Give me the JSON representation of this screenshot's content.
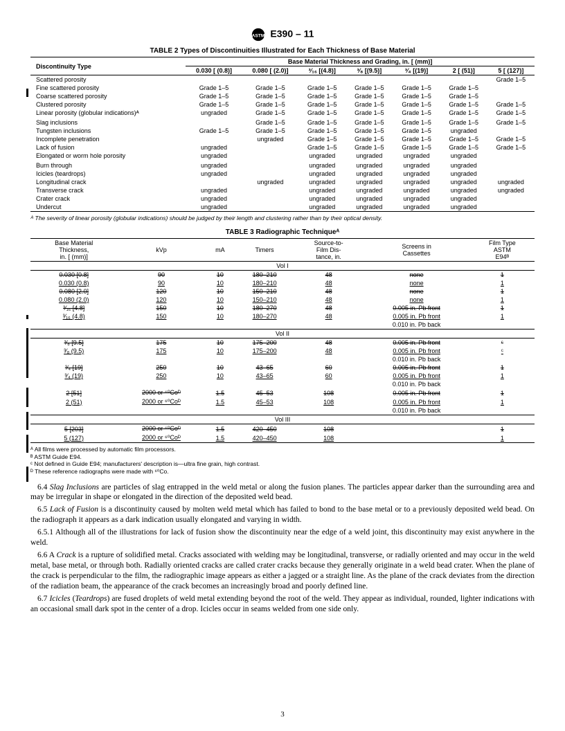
{
  "header": {
    "designation": "E390 – 11"
  },
  "table2": {
    "title": "TABLE 2  Types of Discontinuities Illustrated for Each Thickness of Base Material",
    "col_label": "Discontinuity Type",
    "span_header": "Base Material Thickness and Grading, in. [ (mm)]",
    "cols": [
      "0.030 [ (0.8)]",
      "0.080 [ (2.0)]",
      "³⁄₁₆ [(4.8)]",
      "³⁄₈ [(9.5)]",
      "³⁄₄ [(19)]",
      "2 [ (51)]",
      "5 [ (127)]"
    ],
    "rows": [
      {
        "name": "Scattered porosity",
        "c": [
          "",
          "",
          "",
          "",
          "",
          "",
          "Grade 1–5"
        ]
      },
      {
        "name": "Fine scattered porosity",
        "c": [
          "Grade 1–5",
          "Grade 1–5",
          "Grade 1–5",
          "Grade 1–5",
          "Grade 1–5",
          "Grade 1–5",
          ""
        ]
      },
      {
        "name": "Coarse scattered porosity",
        "c": [
          "Grade 1–5",
          "Grade 1–5",
          "Grade 1–5",
          "Grade 1–5",
          "Grade 1–5",
          "Grade 1–5",
          ""
        ]
      },
      {
        "name": "Clustered porosity",
        "c": [
          "Grade 1–5",
          "Grade 1–5",
          "Grade 1–5",
          "Grade 1–5",
          "Grade 1–5",
          "Grade 1–5",
          "Grade 1–5"
        ]
      },
      {
        "name": "Linear porosity (globular indications)ᴬ",
        "c": [
          "ungraded",
          "Grade 1–5",
          "Grade 1–5",
          "Grade 1–5",
          "Grade 1–5",
          "Grade 1–5",
          "Grade 1–5"
        ]
      },
      {
        "name": "",
        "c": [
          "",
          "",
          "",
          "",
          "",
          "",
          ""
        ]
      },
      {
        "name": "Slag inclusions",
        "c": [
          "",
          "Grade 1–5",
          "Grade 1–5",
          "Grade 1–5",
          "Grade 1–5",
          "Grade 1–5",
          "Grade 1–5"
        ]
      },
      {
        "name": "Tungsten inclusions",
        "c": [
          "Grade 1–5",
          "Grade 1–5",
          "Grade 1–5",
          "Grade 1–5",
          "Grade 1–5",
          "ungraded",
          ""
        ]
      },
      {
        "name": "Incomplete penetration",
        "c": [
          "",
          "ungraded",
          "Grade 1–5",
          "Grade 1–5",
          "Grade 1–5",
          "Grade 1–5",
          "Grade 1–5"
        ]
      },
      {
        "name": "Lack of fusion",
        "c": [
          "ungraded",
          "",
          "Grade 1–5",
          "Grade 1–5",
          "Grade 1–5",
          "Grade 1–5",
          "Grade 1–5"
        ]
      },
      {
        "name": "Elongated or worm hole porosity",
        "c": [
          "ungraded",
          "",
          "ungraded",
          "ungraded",
          "ungraded",
          "ungraded",
          ""
        ]
      },
      {
        "name": "",
        "c": [
          "",
          "",
          "",
          "",
          "",
          "",
          ""
        ]
      },
      {
        "name": "Burn through",
        "c": [
          "ungraded",
          "",
          "ungraded",
          "ungraded",
          "ungraded",
          "ungraded",
          ""
        ]
      },
      {
        "name": "Icicles (teardrops)",
        "c": [
          "ungraded",
          "",
          "ungraded",
          "ungraded",
          "ungraded",
          "ungraded",
          ""
        ]
      },
      {
        "name": "Longitudinal crack",
        "c": [
          "",
          "ungraded",
          "ungraded",
          "ungraded",
          "ungraded",
          "ungraded",
          "ungraded"
        ]
      },
      {
        "name": "Transverse crack",
        "c": [
          "ungraded",
          "",
          "ungraded",
          "ungraded",
          "ungraded",
          "ungraded",
          "ungraded"
        ]
      },
      {
        "name": "Crater crack",
        "c": [
          "ungraded",
          "",
          "ungraded",
          "ungraded",
          "ungraded",
          "ungraded",
          ""
        ]
      },
      {
        "name": "Undercut",
        "c": [
          "ungraded",
          "",
          "ungraded",
          "ungraded",
          "ungraded",
          "ungraded",
          ""
        ]
      }
    ],
    "footnote": "ᴬ The severity of linear porosity (globular indications) should be judged by their length and clustering rather than by their optical density."
  },
  "table3": {
    "title": "TABLE 3  Radiographic Techniqueᴬ",
    "headers": [
      "Base Material\nThickness,\nin. [ (mm)]",
      "kVp",
      "mA",
      "Timers",
      "Source-to-\nFilm Dis-\ntance, in.",
      "Screens in\nCassettes",
      "Film Type\nASTM\nE94ᴮ"
    ],
    "vols": [
      {
        "title": "Vol I",
        "rows": [
          {
            "cells": [
              "0.030 [0.8]",
              "90",
              "10",
              "180–210",
              "48",
              "none",
              "1"
            ],
            "style": "strike"
          },
          {
            "cells": [
              "0.030 (0.8)",
              "90",
              "10",
              "180–210",
              "48",
              "none",
              "1"
            ],
            "style": "uline"
          },
          {
            "cells": [
              "0.080 [2.0]",
              "120",
              "10",
              "150–210",
              "48",
              "none",
              "1"
            ],
            "style": "strike"
          },
          {
            "cells": [
              "0.080 (2.0)",
              "120",
              "10",
              "150–210",
              "48",
              "none",
              "1"
            ],
            "style": "uline"
          },
          {
            "cells": [
              "³⁄₁₆ [4.8]",
              "150",
              "10",
              "180–270",
              "48",
              "0.005 in. Pb front",
              "1"
            ],
            "style": "strike"
          },
          {
            "cells": [
              "³⁄₁₆ (4.8)",
              "150",
              "10",
              "180–270",
              "48",
              "0.005 in. Pb front",
              "1"
            ],
            "style": "uline"
          },
          {
            "cells": [
              "",
              "",
              "",
              "",
              "",
              "0.010 in. Pb back",
              ""
            ],
            "style": ""
          }
        ]
      },
      {
        "title": "Vol II",
        "rows": [
          {
            "cells": [
              "³⁄₈ [9.5]",
              "175",
              "10",
              "175–200",
              "48",
              "0.005 in. Pb front",
              "ᶜ"
            ],
            "style": "strike"
          },
          {
            "cells": [
              "³⁄₈ (9.5)",
              "175",
              "10",
              "175–200",
              "48",
              "0.005 in. Pb front",
              "ᶜ"
            ],
            "style": "uline"
          },
          {
            "cells": [
              "",
              "",
              "",
              "",
              "",
              "0.010 in. Pb back",
              ""
            ],
            "style": ""
          },
          {
            "cells": [
              "³⁄₄ [19]",
              "250",
              "10",
              "43–65",
              "60",
              "0.005 in. Pb front",
              "1"
            ],
            "style": "strike"
          },
          {
            "cells": [
              "³⁄₄ (19)",
              "250",
              "10",
              "43–65",
              "60",
              "0.005 in. Pb front",
              "1"
            ],
            "style": "uline"
          },
          {
            "cells": [
              "",
              "",
              "",
              "",
              "",
              "0.010 in. Pb back",
              ""
            ],
            "style": ""
          },
          {
            "cells": [
              "2 [51]",
              "2000 or ⁶⁰Coᴰ",
              "1.5",
              "45–53",
              "108",
              "0.005 in. Pb front",
              "1"
            ],
            "style": "strike"
          },
          {
            "cells": [
              "2 (51)",
              "2000 or ⁶⁰Coᴰ",
              "1.5",
              "45–53",
              "108",
              "0.005 in. Pb front",
              "1"
            ],
            "style": "uline"
          },
          {
            "cells": [
              "",
              "",
              "",
              "",
              "",
              "0.010 in. Pb back",
              ""
            ],
            "style": ""
          }
        ]
      },
      {
        "title": "Vol III",
        "rows": [
          {
            "cells": [
              "5 [203]",
              "2000 or ⁶⁰Coᴰ",
              "1.5",
              "420–450",
              "108",
              "",
              "1"
            ],
            "style": "strike"
          },
          {
            "cells": [
              "5 (127)",
              "2000 or ⁶⁰Coᴰ",
              "1.5",
              "420–450",
              "108",
              "",
              "1"
            ],
            "style": "uline"
          }
        ]
      }
    ],
    "footnotes": [
      "ᴬ All films were processed by automatic film processors.",
      "ᴮ ASTM Guide E94.",
      "ᶜ Not defined in Guide E94; manufacturers' description is—ultra fine grain, high contrast.",
      "ᴰ These reference radiographs were made with ⁶⁰Co."
    ]
  },
  "body": {
    "p64": "6.4 <em>Slag Inclusions</em>   are particles of slag entrapped in the weld metal or along the fusion planes. The particles appear darker than the surrounding area and may be irregular in shape or elongated in the direction of the deposited weld bead.",
    "p65": "6.5 <em>Lack of Fusion</em>   is a discontinuity caused by molten weld metal which has failed to bond to the base metal or to a previously deposited weld bead. On the radiograph it appears as a dark indication usually elongated and varying in width.",
    "p651": "6.5.1 Although all of the illustrations for lack of fusion show the discontinuity near the edge of a weld joint, this discontinuity may exist anywhere in the weld.",
    "p66": "6.6 A <em>Crack</em> is a rupture of solidified metal. Cracks associated with welding may be longitudinal, transverse, or radially oriented and may occur in the weld metal, base metal, or through both. Radially oriented cracks are called crater cracks because they generally originate in a weld bead crater. When the plane of the crack is perpendicular to the film, the radiographic image appears as either a jagged or a straight line. As the plane of the crack deviates from the direction of the radiation beam, the appearance of the crack becomes an increasingly broad and poorly defined line.",
    "p67": "6.7 <em>Icicles</em> (<em>Teardrops</em>) are fused droplets of weld metal extending beyond the root of the weld. They appear as individual, rounded, lighter indications with an occasional small dark spot in the center of a drop. Icicles occur in seams welded from one side only."
  },
  "page_num": "3"
}
